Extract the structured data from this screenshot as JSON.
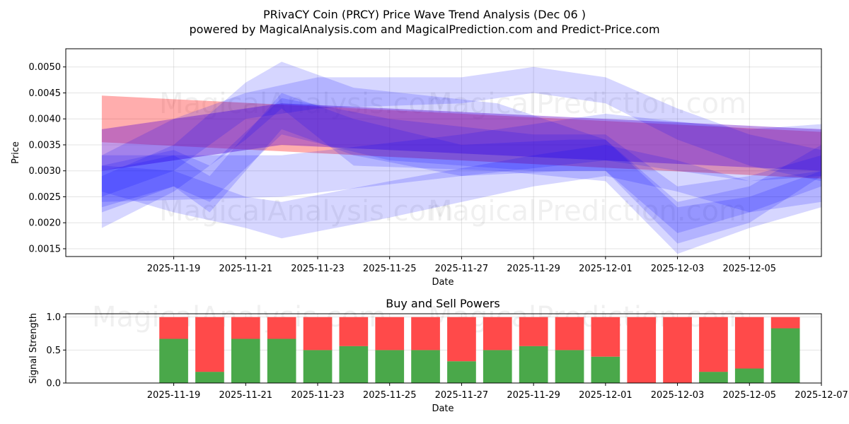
{
  "title": "PRivaCY Coin (PRCY) Price Wave Trend Analysis (Dec 06 )",
  "subtitle": "powered by MagicalAnalysis.com and MagicalPrediction.com and Predict-Price.com",
  "watermarks": [
    "MagicalAnalysis.com",
    "MagicalPrediction.com"
  ],
  "colors": {
    "buy": "#4aa84a",
    "sell": "#ff4a4a",
    "wave_blue": "#0000ff",
    "wave_red": "#ff0000"
  },
  "chart_data": [
    {
      "type": "area",
      "title": "",
      "xlabel": "Date",
      "ylabel": "Price",
      "xlim": [
        "2025-11-16",
        "2025-12-07"
      ],
      "ylim": [
        0.00135,
        0.00535
      ],
      "yticks": [
        0.0015,
        0.002,
        0.0025,
        0.003,
        0.0035,
        0.004,
        0.0045,
        0.005
      ],
      "ytick_labels": [
        "0.0015",
        "0.0020",
        "0.0025",
        "0.0030",
        "0.0035",
        "0.0040",
        "0.0045",
        "0.0050"
      ],
      "xticks": [
        "2025-11-19",
        "2025-11-21",
        "2025-11-23",
        "2025-11-25",
        "2025-11-27",
        "2025-11-29",
        "2025-12-01",
        "2025-12-03",
        "2025-12-05"
      ],
      "grid": true,
      "series": [
        {
          "name": "red-trend-band",
          "color": "red",
          "x": [
            "2025-11-17",
            "2025-12-07"
          ],
          "upper": [
            0.00445,
            0.00375
          ],
          "lower": [
            0.00355,
            0.00285
          ]
        },
        {
          "name": "purple-trend-band",
          "color": "purple",
          "x": [
            "2025-11-17",
            "2025-11-22",
            "2025-12-01",
            "2025-12-07"
          ],
          "upper": [
            0.0038,
            0.0043,
            0.004,
            0.0038
          ],
          "lower": [
            0.003,
            0.0035,
            0.0032,
            0.003
          ]
        },
        {
          "name": "blue-trend-band-rising",
          "color": "blue",
          "x": [
            "2025-11-17",
            "2025-11-22",
            "2025-11-27",
            "2025-12-01",
            "2025-12-05",
            "2025-12-07"
          ],
          "upper": [
            0.0033,
            0.0033,
            0.0037,
            0.0041,
            0.0038,
            0.0039
          ],
          "lower": [
            0.0024,
            0.0025,
            0.0029,
            0.0032,
            0.0028,
            0.0029
          ]
        },
        {
          "name": "blue-wave-a",
          "color": "blue",
          "x": [
            "2025-11-17",
            "2025-11-19",
            "2025-11-20",
            "2025-11-22",
            "2025-11-25",
            "2025-11-29",
            "2025-12-01",
            "2025-12-03",
            "2025-12-05",
            "2025-12-07"
          ],
          "upper": [
            0.0031,
            0.0034,
            0.0031,
            0.0044,
            0.004,
            0.0037,
            0.0037,
            0.0027,
            0.0029,
            0.0033
          ],
          "lower": [
            0.0022,
            0.0027,
            0.0024,
            0.0037,
            0.0032,
            0.003,
            0.003,
            0.0018,
            0.0022,
            0.0027
          ]
        },
        {
          "name": "blue-wave-b",
          "color": "blue",
          "x": [
            "2025-11-17",
            "2025-11-19",
            "2025-11-21",
            "2025-11-22",
            "2025-11-24",
            "2025-11-28",
            "2025-12-01",
            "2025-12-03",
            "2025-12-05",
            "2025-12-07"
          ],
          "upper": [
            0.0029,
            0.0035,
            0.0047,
            0.0051,
            0.0046,
            0.0043,
            0.0036,
            0.0023,
            0.0025,
            0.003
          ],
          "lower": [
            0.0019,
            0.0026,
            0.0036,
            0.0042,
            0.0031,
            0.003,
            0.0028,
            0.0014,
            0.0019,
            0.0023
          ]
        },
        {
          "name": "blue-wave-c",
          "color": "blue",
          "x": [
            "2025-11-17",
            "2025-11-19",
            "2025-11-21",
            "2025-11-23",
            "2025-11-27",
            "2025-11-29",
            "2025-12-01",
            "2025-12-03",
            "2025-12-05",
            "2025-12-07"
          ],
          "upper": [
            0.0033,
            0.004,
            0.0045,
            0.0048,
            0.0048,
            0.005,
            0.0048,
            0.0042,
            0.0037,
            0.0034
          ],
          "lower": [
            0.0025,
            0.003,
            0.004,
            0.0042,
            0.0043,
            0.0045,
            0.0043,
            0.0036,
            0.0031,
            0.0028
          ]
        },
        {
          "name": "blue-wave-d",
          "color": "blue",
          "x": [
            "2025-11-17",
            "2025-11-19",
            "2025-11-21",
            "2025-11-22",
            "2025-11-25",
            "2025-11-29",
            "2025-12-01",
            "2025-12-03",
            "2025-12-05",
            "2025-12-07"
          ],
          "upper": [
            0.0031,
            0.003,
            0.0025,
            0.0024,
            0.0028,
            0.0033,
            0.0035,
            0.0032,
            0.0028,
            0.003
          ],
          "lower": [
            0.0026,
            0.0022,
            0.0019,
            0.0017,
            0.0021,
            0.0027,
            0.0029,
            0.0026,
            0.0022,
            0.0024
          ]
        },
        {
          "name": "blue-wave-e",
          "color": "blue",
          "x": [
            "2025-11-17",
            "2025-11-19",
            "2025-11-20",
            "2025-11-22",
            "2025-11-24",
            "2025-11-27",
            "2025-11-30",
            "2025-12-01",
            "2025-12-03",
            "2025-12-05",
            "2025-12-07"
          ],
          "upper": [
            0.003,
            0.0033,
            0.0029,
            0.0045,
            0.004,
            0.0035,
            0.0036,
            0.0036,
            0.0024,
            0.0027,
            0.0035
          ],
          "lower": [
            0.0023,
            0.0027,
            0.0022,
            0.0038,
            0.0033,
            0.0029,
            0.003,
            0.003,
            0.0016,
            0.002,
            0.0029
          ]
        }
      ]
    },
    {
      "type": "bar",
      "title": "Buy and Sell Powers",
      "xlabel": "Date",
      "ylabel": "Signal Strength",
      "ylim": [
        0,
        1.05
      ],
      "yticks": [
        0.0,
        0.5,
        1.0
      ],
      "ytick_labels": [
        "0.0",
        "0.5",
        "1.0"
      ],
      "xticks": [
        "2025-11-19",
        "2025-11-21",
        "2025-11-23",
        "2025-11-25",
        "2025-11-27",
        "2025-11-29",
        "2025-12-01",
        "2025-12-03",
        "2025-12-05",
        "2025-12-07"
      ],
      "grid": true,
      "categories": [
        "2025-11-19",
        "2025-11-20",
        "2025-11-21",
        "2025-11-22",
        "2025-11-23",
        "2025-11-24",
        "2025-11-25",
        "2025-11-26",
        "2025-11-27",
        "2025-11-28",
        "2025-11-29",
        "2025-11-30",
        "2025-12-01",
        "2025-12-02",
        "2025-12-03",
        "2025-12-04",
        "2025-12-05",
        "2025-12-06"
      ],
      "series": [
        {
          "name": "Buy",
          "color": "green",
          "values": [
            0.67,
            0.17,
            0.67,
            0.67,
            0.5,
            0.56,
            0.5,
            0.5,
            0.33,
            0.5,
            0.56,
            0.5,
            0.4,
            0.0,
            0.0,
            0.17,
            0.22,
            0.83
          ]
        },
        {
          "name": "Sell",
          "color": "red",
          "values": [
            0.33,
            0.83,
            0.33,
            0.33,
            0.5,
            0.44,
            0.5,
            0.5,
            0.67,
            0.5,
            0.44,
            0.5,
            0.6,
            1.0,
            1.0,
            0.83,
            0.78,
            0.17
          ]
        }
      ]
    }
  ]
}
